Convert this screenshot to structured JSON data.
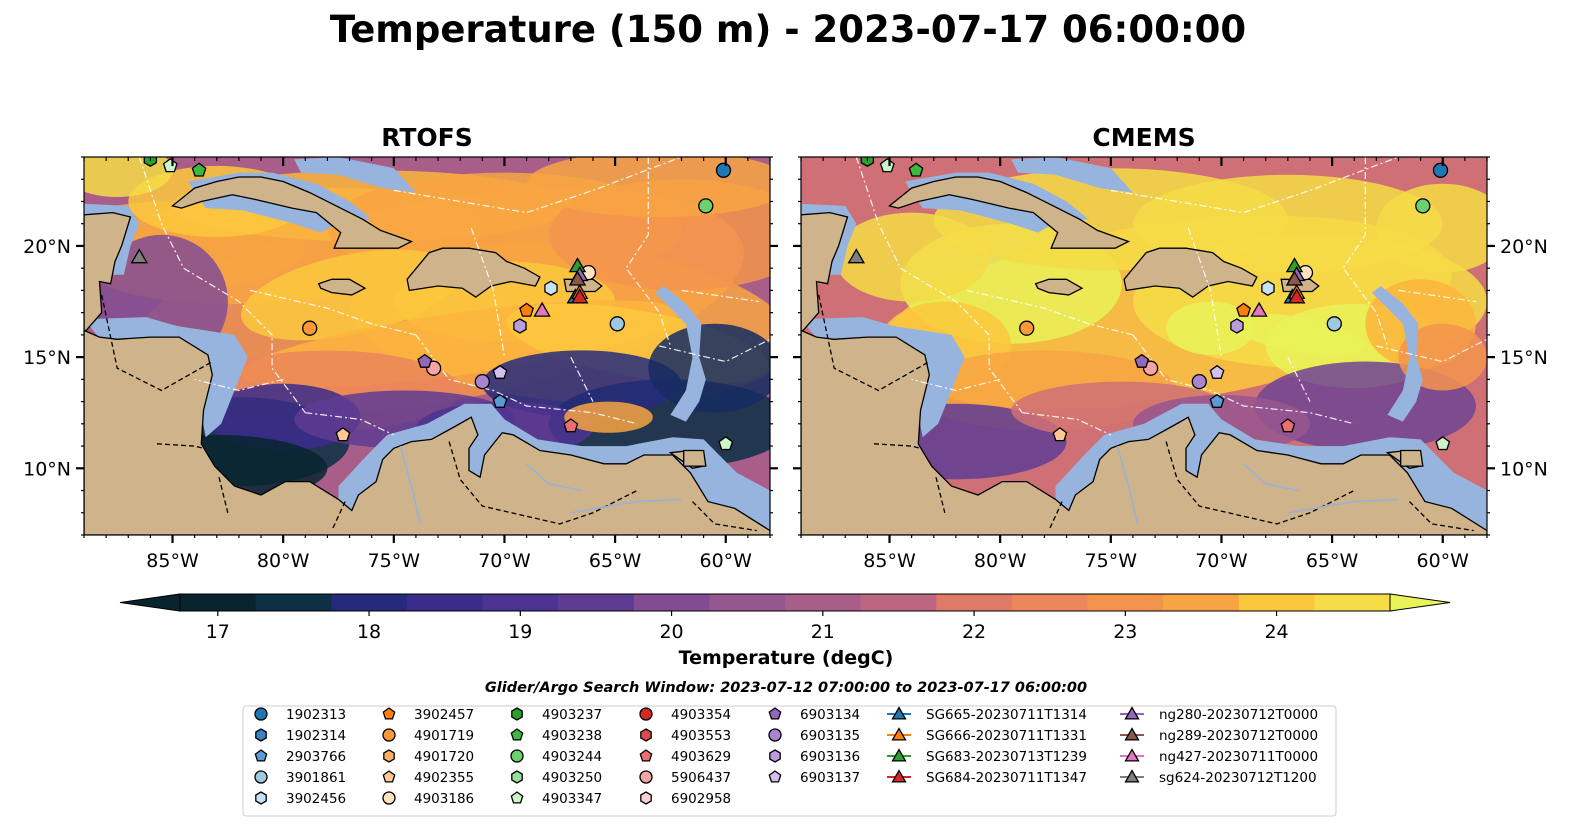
{
  "title": "Temperature (150 m) - 2023-07-17 06:00:00",
  "colors": {
    "land": "#cfb38b",
    "shelf": "#96b4de",
    "background": "#ffffff",
    "colormap": [
      "#08242f",
      "#0c2f45",
      "#162b61",
      "#252a7c",
      "#3b2c8b",
      "#4d3391",
      "#5f3c93",
      "#704494",
      "#824c93",
      "#96568f",
      "#a95e89",
      "#bc6781",
      "#cf7076",
      "#df7a69",
      "#ec865b",
      "#f3944d",
      "#f8a443",
      "#fbb53d",
      "#fbc83d",
      "#f6dc47",
      "#e9f257"
    ]
  },
  "chart_data": [
    {
      "type": "heatmap",
      "panel": "RTOFS",
      "title": "RTOFS",
      "x_ticks": [
        "85°W",
        "80°W",
        "75°W",
        "70°W",
        "65°W",
        "60°W"
      ],
      "x_tick_values": [
        -85,
        -80,
        -75,
        -70,
        -65,
        -60
      ],
      "y_ticks": [
        "10°N",
        "15°N",
        "20°N"
      ],
      "y_tick_values": [
        10,
        15,
        20
      ],
      "xlim": [
        -89,
        -58
      ],
      "ylim": [
        7,
        24
      ],
      "y_axis_side": "left",
      "temperature_pattern": "warm (22-24) across central Caribbean and around Greater Antilles; cool (17-19) in southwestern Caribbean and along the South American coast"
    },
    {
      "type": "heatmap",
      "panel": "CMEMS",
      "title": "CMEMS",
      "x_ticks": [
        "85°W",
        "80°W",
        "75°W",
        "70°W",
        "65°W",
        "60°W"
      ],
      "x_tick_values": [
        -85,
        -80,
        -75,
        -70,
        -65,
        -60
      ],
      "y_ticks": [
        "10°N",
        "15°N",
        "20°N"
      ],
      "y_tick_values": [
        10,
        15,
        20
      ],
      "xlim": [
        -89,
        -58
      ],
      "ylim": [
        7,
        24
      ],
      "y_axis_side": "right",
      "temperature_pattern": "broad warm (23-24.5) areas in central Caribbean and Cayman Sea; cooler (18-20) along South American coast"
    }
  ],
  "colorbar": {
    "label": "Temperature (degC)",
    "ticks": [
      "17",
      "18",
      "19",
      "20",
      "21",
      "22",
      "23",
      "24"
    ],
    "tick_values": [
      17,
      18,
      19,
      20,
      21,
      22,
      23,
      24
    ],
    "range": [
      16.75,
      24.75
    ],
    "extend": "both"
  },
  "legend": {
    "title": "Glider/Argo Search Window: 2023-07-12 07:00:00 to 2023-07-17 06:00:00",
    "columns": [
      [
        {
          "label": "1902313",
          "marker": "circle",
          "color": "#1f77b4"
        },
        {
          "label": "1902314",
          "marker": "hexagon",
          "color": "#3a83c4"
        },
        {
          "label": "2903766",
          "marker": "pentagon",
          "color": "#5a9bd5"
        },
        {
          "label": "3901861",
          "marker": "circle",
          "color": "#9ecae1"
        },
        {
          "label": "3902456",
          "marker": "hexagon",
          "color": "#c6e2f2"
        }
      ],
      [
        {
          "label": "3902457",
          "marker": "pentagon",
          "color": "#ff7f0e"
        },
        {
          "label": "4901719",
          "marker": "circle",
          "color": "#ff9838"
        },
        {
          "label": "4901720",
          "marker": "hexagon",
          "color": "#ffb066"
        },
        {
          "label": "4902355",
          "marker": "pentagon",
          "color": "#ffc894"
        },
        {
          "label": "4903186",
          "marker": "circle",
          "color": "#ffe2c2"
        }
      ],
      [
        {
          "label": "4903237",
          "marker": "hexagon",
          "color": "#2ca02c"
        },
        {
          "label": "4903238",
          "marker": "pentagon",
          "color": "#3fb83f"
        },
        {
          "label": "4903244",
          "marker": "circle",
          "color": "#6cd06c"
        },
        {
          "label": "4903250",
          "marker": "hexagon",
          "color": "#98e098"
        },
        {
          "label": "4903347",
          "marker": "pentagon",
          "color": "#c9f5c9"
        }
      ],
      [
        {
          "label": "4903354",
          "marker": "circle",
          "color": "#d62728"
        },
        {
          "label": "4903553",
          "marker": "hexagon",
          "color": "#e04a4a"
        },
        {
          "label": "4903629",
          "marker": "pentagon",
          "color": "#ec6f6f"
        },
        {
          "label": "5906437",
          "marker": "circle",
          "color": "#f5a3a3"
        },
        {
          "label": "6902958",
          "marker": "hexagon",
          "color": "#fbd0d0"
        }
      ],
      [
        {
          "label": "6903134",
          "marker": "pentagon",
          "color": "#9467bd"
        },
        {
          "label": "6903135",
          "marker": "circle",
          "color": "#a985cf"
        },
        {
          "label": "6903136",
          "marker": "hexagon",
          "color": "#bb9ddd"
        },
        {
          "label": "6903137",
          "marker": "pentagon",
          "color": "#d3c0ee"
        }
      ],
      [
        {
          "label": "SG665-20230711T1314",
          "marker": "triangle",
          "color": "#1f77b4"
        },
        {
          "label": "SG666-20230711T1331",
          "marker": "triangle",
          "color": "#ff7f0e"
        },
        {
          "label": "SG683-20230713T1239",
          "marker": "triangle",
          "color": "#2ca02c"
        },
        {
          "label": "SG684-20230711T1347",
          "marker": "triangle",
          "color": "#d62728"
        }
      ],
      [
        {
          "label": "ng280-20230712T0000",
          "marker": "triangle",
          "color": "#9467bd"
        },
        {
          "label": "ng289-20230712T0000",
          "marker": "triangle",
          "color": "#8c564b"
        },
        {
          "label": "ng427-20230711T0000",
          "marker": "triangle",
          "color": "#e377c2"
        },
        {
          "label": "sg624-20230712T1200",
          "marker": "triangle",
          "color": "#7f7f7f"
        }
      ]
    ]
  },
  "observations": [
    {
      "id": "1902313",
      "marker": "circle",
      "color": "#1f77b4",
      "lon": -60.1,
      "lat": 23.4
    },
    {
      "id": "3901861",
      "marker": "circle",
      "color": "#9ecae1",
      "lon": -64.9,
      "lat": 16.5
    },
    {
      "id": "3902456",
      "marker": "hexagon",
      "color": "#c6e2f2",
      "lon": -67.9,
      "lat": 18.1
    },
    {
      "id": "2903766",
      "marker": "pentagon",
      "color": "#5a9bd5",
      "lon": -70.2,
      "lat": 13.0
    },
    {
      "id": "3902457",
      "marker": "pentagon",
      "color": "#ff7f0e",
      "lon": -69.0,
      "lat": 17.1
    },
    {
      "id": "4901719",
      "marker": "circle",
      "color": "#ff9838",
      "lon": -78.8,
      "lat": 16.3
    },
    {
      "id": "4902355",
      "marker": "pentagon",
      "color": "#ffc894",
      "lon": -77.3,
      "lat": 11.5
    },
    {
      "id": "4903186",
      "marker": "circle",
      "color": "#ffe2c2",
      "lon": -66.2,
      "lat": 18.8
    },
    {
      "id": "4903237",
      "marker": "hexagon",
      "color": "#2ca02c",
      "lon": -86.0,
      "lat": 23.9
    },
    {
      "id": "4903238",
      "marker": "pentagon",
      "color": "#3fb83f",
      "lon": -83.8,
      "lat": 23.4
    },
    {
      "id": "4903244",
      "marker": "circle",
      "color": "#6cd06c",
      "lon": -60.9,
      "lat": 21.8
    },
    {
      "id": "4903347",
      "marker": "pentagon",
      "color": "#c9f5c9",
      "lon": -85.1,
      "lat": 23.6
    },
    {
      "id": "4903347b",
      "marker": "pentagon",
      "color": "#c9f5c9",
      "lon": -60.0,
      "lat": 11.1
    },
    {
      "id": "4903629",
      "marker": "pentagon",
      "color": "#ec6f6f",
      "lon": -67.0,
      "lat": 11.9
    },
    {
      "id": "5906437",
      "marker": "circle",
      "color": "#f5a3a3",
      "lon": -73.2,
      "lat": 14.5
    },
    {
      "id": "6903134",
      "marker": "pentagon",
      "color": "#9467bd",
      "lon": -73.6,
      "lat": 14.8
    },
    {
      "id": "6903135",
      "marker": "circle",
      "color": "#a985cf",
      "lon": -71.0,
      "lat": 13.9
    },
    {
      "id": "6903136",
      "marker": "hexagon",
      "color": "#bb9ddd",
      "lon": -69.3,
      "lat": 16.4
    },
    {
      "id": "6903137",
      "marker": "pentagon",
      "color": "#d3c0ee",
      "lon": -70.2,
      "lat": 14.3
    },
    {
      "id": "SG665",
      "marker": "triangle",
      "color": "#1f77b4",
      "lon": -66.8,
      "lat": 17.7
    },
    {
      "id": "SG666",
      "marker": "triangle",
      "color": "#ff7f0e",
      "lon": -66.6,
      "lat": 17.9
    },
    {
      "id": "SG683",
      "marker": "triangle",
      "color": "#2ca02c",
      "lon": -66.7,
      "lat": 19.1
    },
    {
      "id": "SG684",
      "marker": "triangle",
      "color": "#d62728",
      "lon": -66.6,
      "lat": 17.7
    },
    {
      "id": "ng280",
      "marker": "triangle",
      "color": "#9467bd",
      "lon": -66.6,
      "lat": 18.7
    },
    {
      "id": "ng289",
      "marker": "triangle",
      "color": "#8c564b",
      "lon": -66.7,
      "lat": 18.5
    },
    {
      "id": "ng427",
      "marker": "triangle",
      "color": "#e377c2",
      "lon": -68.3,
      "lat": 17.1
    },
    {
      "id": "sg624",
      "marker": "triangle",
      "color": "#7f7f7f",
      "lon": -86.5,
      "lat": 19.5
    }
  ]
}
